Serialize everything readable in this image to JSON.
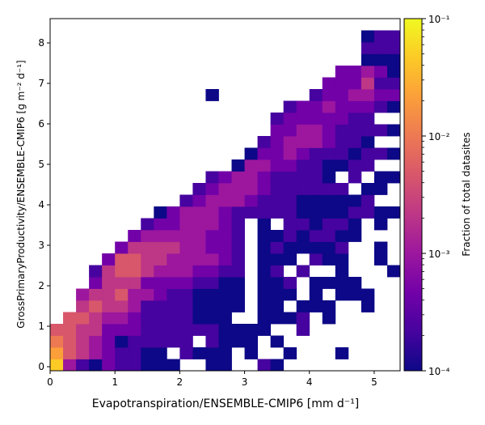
{
  "chart_data": {
    "type": "heatmap",
    "xlabel": "Evapotranspiration/ENSEMBLE-CMIP6 [mm d⁻¹]",
    "ylabel": "GrossPrimaryProductivity/ENSEMBLE-CMIP6 [g m⁻² d⁻¹]",
    "colorbar_label": "Fraction of total datasites",
    "colorbar_scale": "log",
    "colorbar_range": [
      0.0001,
      0.1
    ],
    "colorbar_ticks": [
      "10⁻⁴",
      "10⁻³",
      "10⁻²",
      "10⁻¹"
    ],
    "colormap": [
      "#0d0887",
      "#46039f",
      "#7201a8",
      "#9c179e",
      "#bd3786",
      "#d8576b",
      "#ed7953",
      "#fb9f3a",
      "#fdca26",
      "#f0f921"
    ],
    "xlim": [
      0,
      5.4
    ],
    "ylim": [
      -0.1,
      8.6
    ],
    "xticks": [
      0,
      1,
      2,
      3,
      4,
      5
    ],
    "yticks": [
      0,
      1,
      2,
      3,
      4,
      5,
      6,
      7,
      8
    ],
    "bin_width_x": 0.2,
    "bin_height_y": 0.29,
    "rows": [
      "IDBACBBAAA  AA  BA",
      "HFEDCBBAA BAAA A  A   A",
      "GFEDCABBBBB BAAA A",
      "FFEECCCBBBBBBAAAA  B            B",
      " FFEDDCBBBBAAA  AAAB A",
      "  EFEEDBBBBAAAA AA AAA  A",
      "  DEEFDDCBBAAAA AAA A AAA",
      "   CEEECCCCBBAA AAB AAAA",
      "   BEFFEDDDCCBB AB B  A   A",
      "    CFFEEDDDDCB AAA BAA  A",
      "     CEEEEDDCCB ABAAAAB  A",
      "      CDDDDDCCB AABABBAA",
      "       BCCDDDCB A BBABBA A",
      "        ACDDDCBBBBBAAAABBAA",
      "          BCDDDCBBBAAAAAB",
      "           BCDDDCBBBBBB AA",
      "            BCDDCBBBBA B AA",
      "              ADDCCBBAABB",
      "               ACCDCBBBABBA",
      "                BCDDDCBBA",
      "                 CCDDCBBBBA",
      "                 BCCCCCBB",
      "                  BCCDCCCBAA",
      "            A       BCCDDCCAA",
      "                     CCCEBBB",
      "                      CCDCAA",
      "                        AAAA",
      "                        BBBA",
      "                        ABBA"
    ]
  }
}
